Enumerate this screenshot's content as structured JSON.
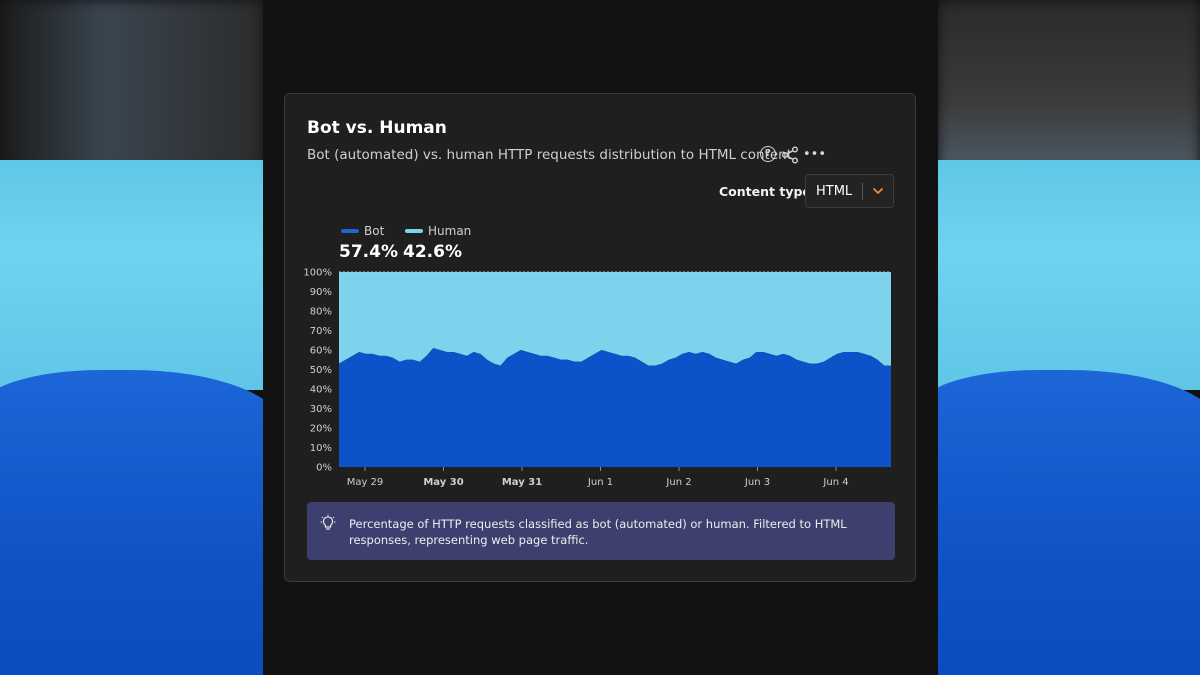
{
  "card": {
    "title": "Bot vs. Human",
    "subtitle": "Bot (automated) vs. human HTTP requests distribution to HTML content",
    "help_icon": "question-circle-icon",
    "share_icon": "share-icon",
    "more_icon": "more-dots-icon",
    "more_glyph": "•••"
  },
  "filter": {
    "label": "Content type",
    "value": "HTML",
    "chevron_icon": "chevron-down-icon"
  },
  "legend": [
    {
      "name": "Bot",
      "value": "57.4%",
      "color": "#0d52c8"
    },
    {
      "name": "Human",
      "value": "42.6%",
      "color": "#7dd3ec"
    }
  ],
  "note": {
    "icon": "lightbulb-icon",
    "text": "Percentage of HTTP requests classified as bot (automated) or human. Filtered to HTML responses, representing web page traffic."
  },
  "chart_data": {
    "type": "area",
    "stacked": true,
    "y_ticks": [
      "0%",
      "10%",
      "20%",
      "30%",
      "40%",
      "50%",
      "60%",
      "70%",
      "80%",
      "90%",
      "100%"
    ],
    "ylim": [
      0,
      100
    ],
    "x_ticks": [
      {
        "label": "May 29",
        "bold": false
      },
      {
        "label": "May 30",
        "bold": true
      },
      {
        "label": "May 31",
        "bold": true
      },
      {
        "label": "Jun 1",
        "bold": false
      },
      {
        "label": "Jun 2",
        "bold": false
      },
      {
        "label": "Jun 3",
        "bold": false
      },
      {
        "label": "Jun 4",
        "bold": false
      }
    ],
    "series": [
      {
        "name": "Bot",
        "color": "#0d52c8",
        "values": [
          53,
          55,
          57,
          59,
          58,
          58,
          57,
          57,
          56,
          54,
          55,
          55,
          54,
          57,
          61,
          60,
          59,
          59,
          58,
          57,
          59,
          58,
          55,
          53,
          52,
          56,
          58,
          60,
          59,
          58,
          57,
          57,
          56,
          55,
          55,
          54,
          54,
          56,
          58,
          60,
          59,
          58,
          57,
          57,
          56,
          54,
          52,
          52,
          53,
          55,
          56,
          58,
          59,
          58,
          59,
          58,
          56,
          55,
          54,
          53,
          55,
          56,
          59,
          59,
          58,
          57,
          58,
          57,
          55,
          54,
          53,
          53,
          54,
          56,
          58,
          59,
          59,
          59,
          58,
          57,
          55,
          52,
          52
        ]
      },
      {
        "name": "Human",
        "color": "#7dd3ec",
        "values": [
          47,
          45,
          43,
          41,
          42,
          42,
          43,
          43,
          44,
          46,
          45,
          45,
          46,
          43,
          39,
          40,
          41,
          41,
          42,
          43,
          41,
          42,
          45,
          47,
          48,
          44,
          42,
          40,
          41,
          42,
          43,
          43,
          44,
          45,
          45,
          46,
          46,
          44,
          42,
          40,
          41,
          42,
          43,
          43,
          44,
          46,
          48,
          48,
          47,
          45,
          44,
          42,
          41,
          42,
          41,
          42,
          44,
          45,
          46,
          47,
          45,
          44,
          41,
          41,
          42,
          43,
          42,
          43,
          45,
          46,
          47,
          47,
          46,
          44,
          42,
          41,
          41,
          41,
          42,
          43,
          45,
          48,
          48
        ]
      }
    ],
    "grid": true,
    "legend_position": "top-left"
  }
}
